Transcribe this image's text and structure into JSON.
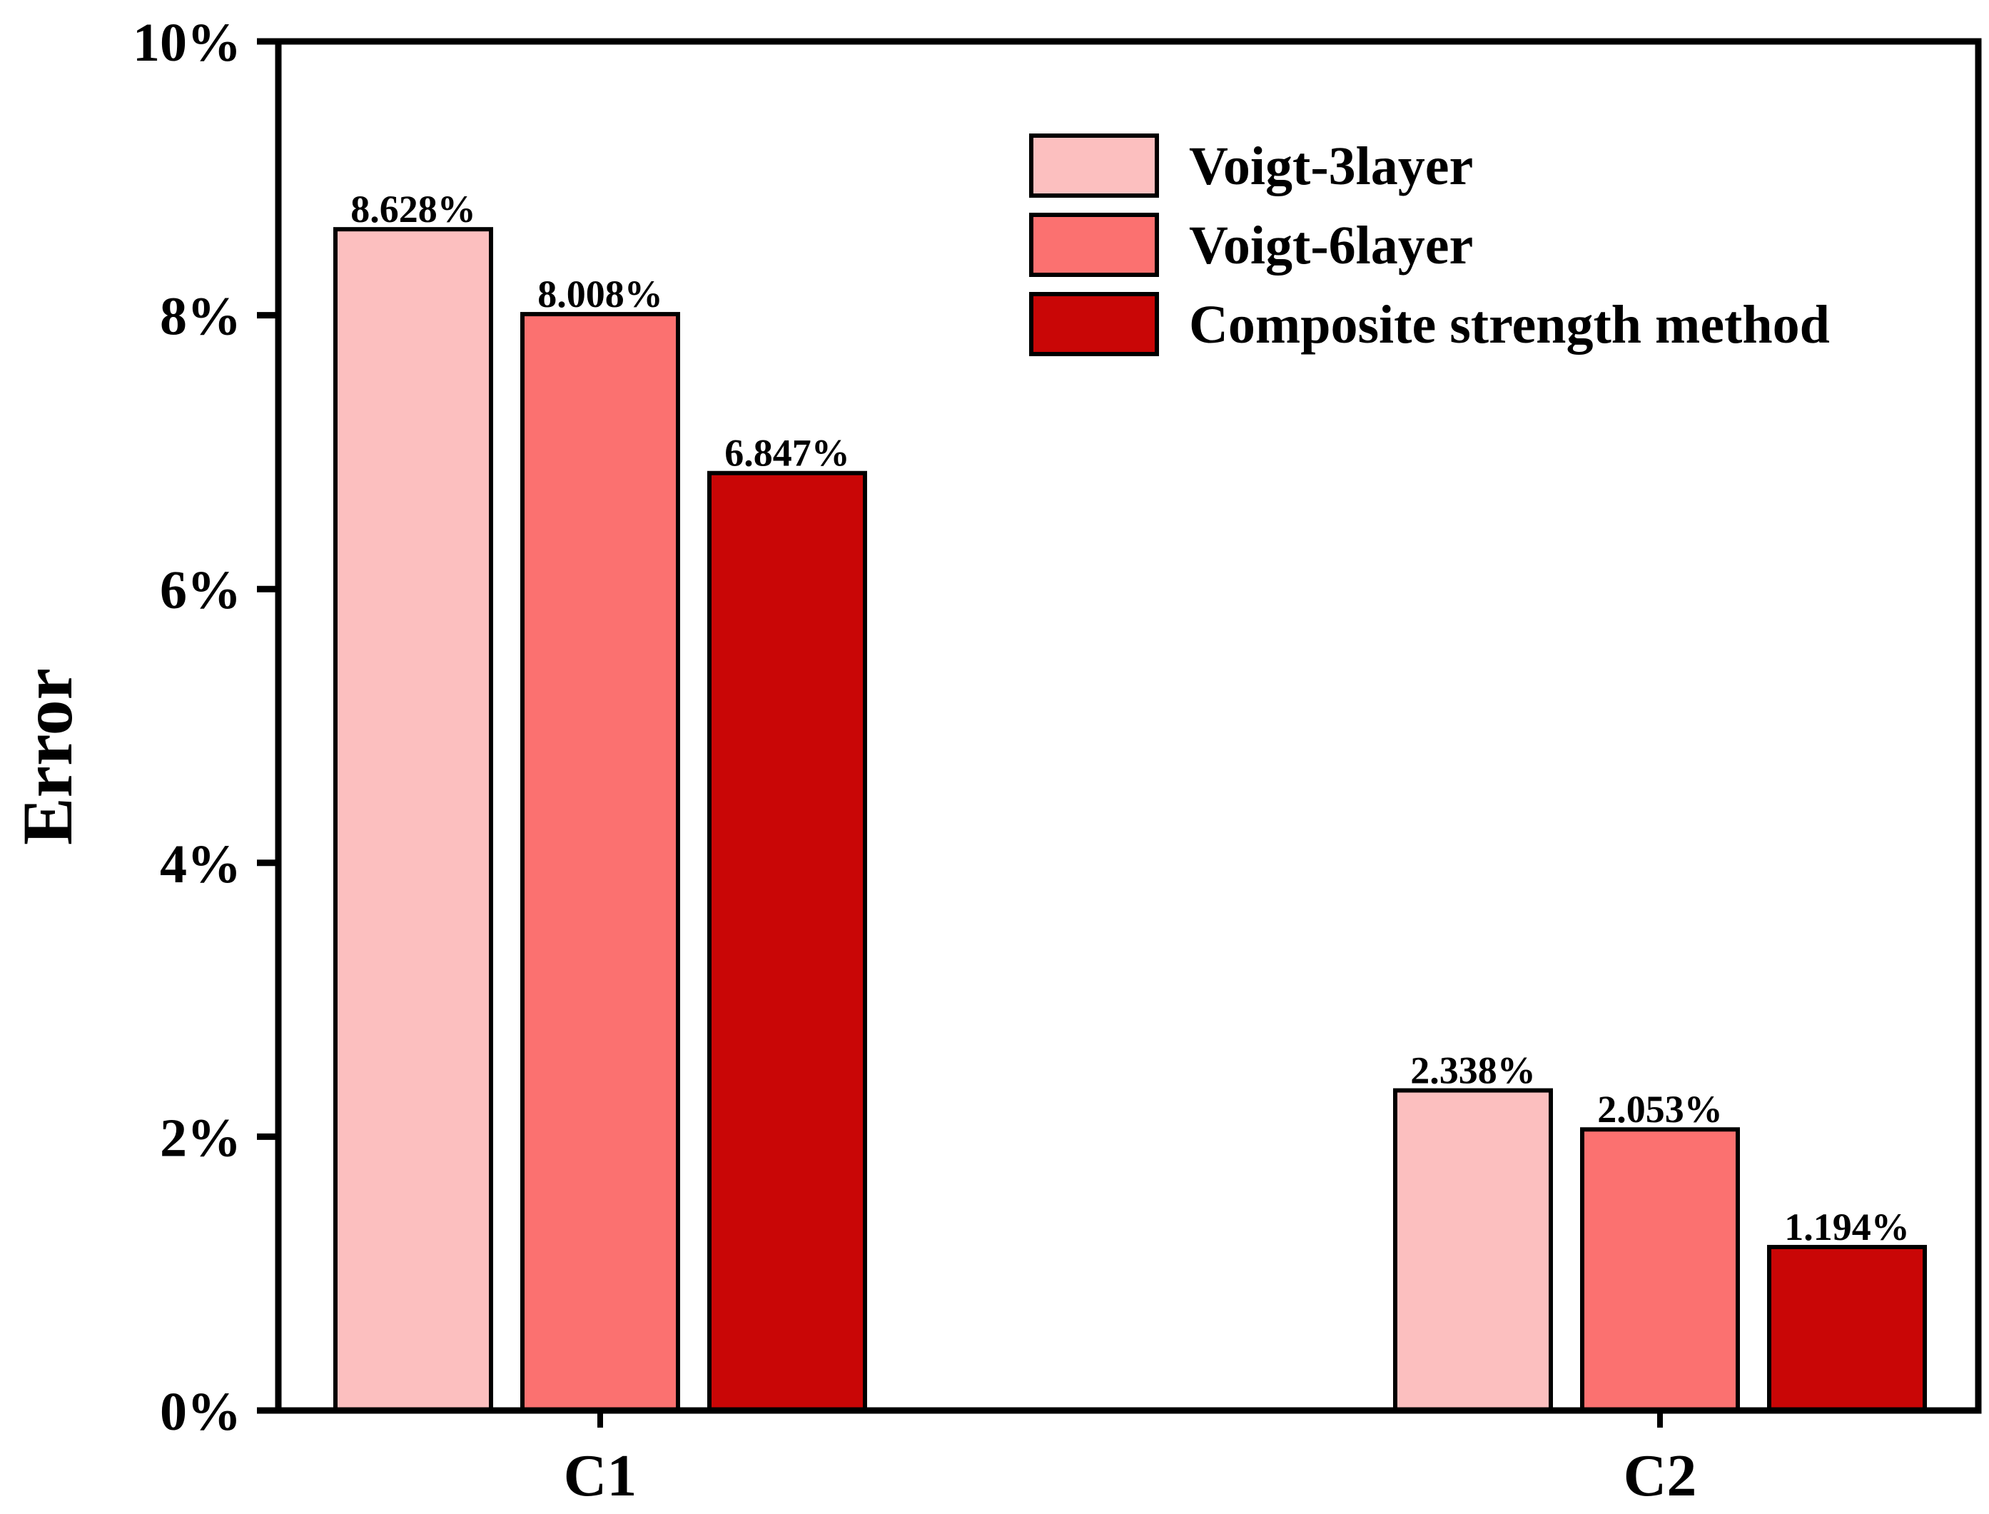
{
  "chart_data": {
    "type": "bar",
    "ylabel": "Error",
    "xlabel": "",
    "ylim": [
      0,
      10
    ],
    "yticks": [
      "0%",
      "2%",
      "4%",
      "6%",
      "8%",
      "10%"
    ],
    "categories": [
      "C1",
      "C2"
    ],
    "legend_position": "top-right",
    "grid": false,
    "series": [
      {
        "name": "Voigt-3layer",
        "color": "#FCBFBF",
        "values": [
          8.628,
          2.338
        ],
        "labels": [
          "8.628%",
          "2.338%"
        ]
      },
      {
        "name": "Voigt-6layer",
        "color": "#FB7170",
        "values": [
          8.008,
          2.053
        ],
        "labels": [
          "8.008%",
          "2.053%"
        ]
      },
      {
        "name": "Composite strength method",
        "color": "#C90606",
        "values": [
          6.847,
          1.194
        ],
        "labels": [
          "6.847%",
          "1.194%"
        ]
      }
    ]
  }
}
